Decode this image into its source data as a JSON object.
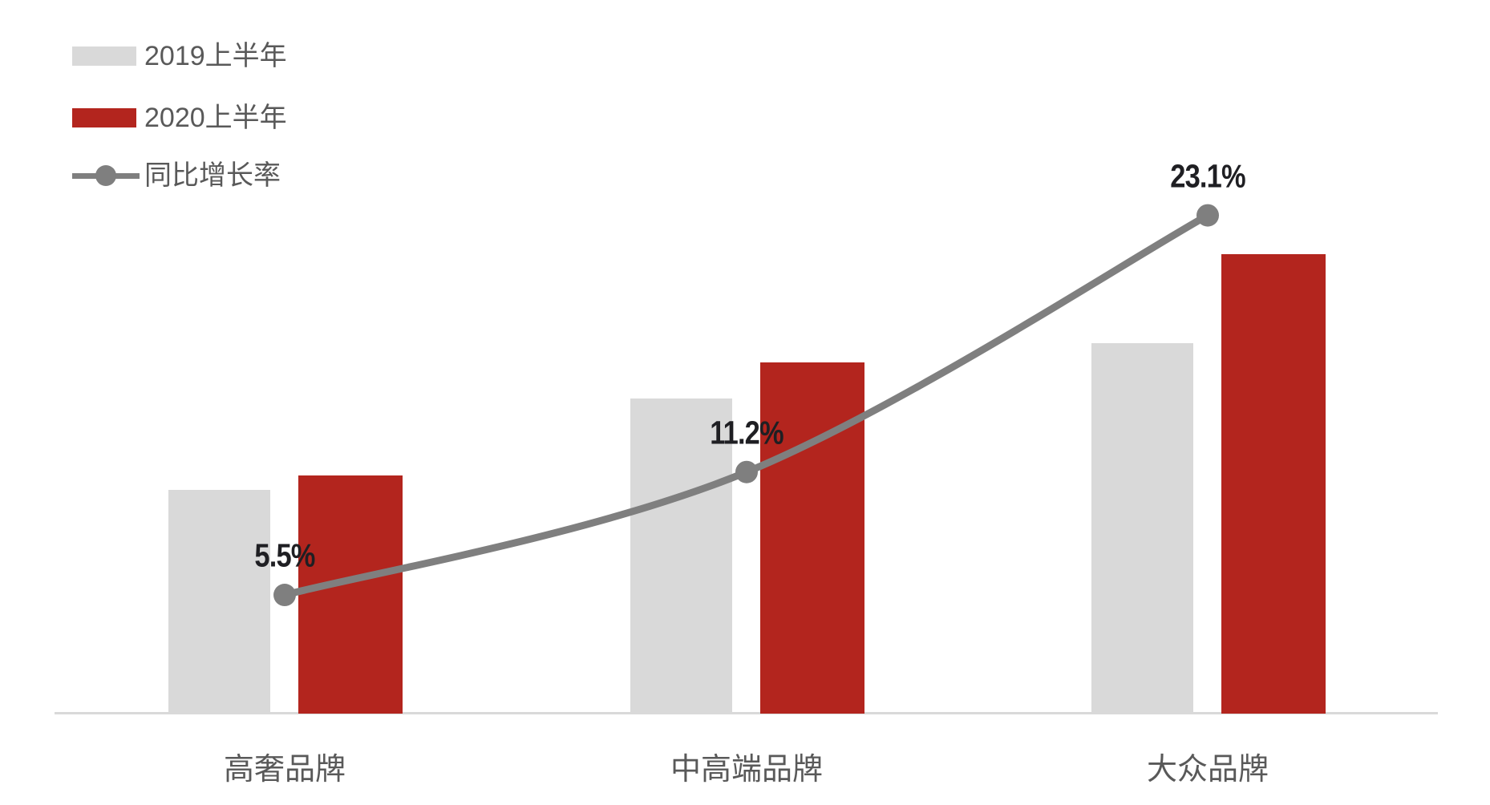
{
  "chart_data": {
    "type": "bar",
    "subtype": "grouped-bars-with-growth-line",
    "title": "",
    "xlabel": "",
    "ylabel": "",
    "categories": [
      "高奢品牌",
      "中高端品牌",
      "大众品牌"
    ],
    "series": [
      {
        "name": "2019上半年",
        "type": "bar",
        "color": "#D9D9D9",
        "values": [
          40.5,
          57,
          67
        ]
      },
      {
        "name": "2020上半年",
        "type": "bar",
        "color": "#B3251E",
        "values": [
          43,
          63.5,
          83
        ]
      },
      {
        "name": "同比增长率",
        "type": "line",
        "color": "#7F7F7F",
        "values": [
          5.5,
          11.2,
          23.1
        ],
        "point_labels": [
          "5.5%",
          "11.2%",
          "23.1%"
        ]
      }
    ],
    "value_axis": {
      "min": 0,
      "max": 100,
      "visible": false
    },
    "secondary_axis": {
      "min": 0,
      "max": 25.6,
      "unit": "%",
      "visible": false
    },
    "legend_position": "top-left",
    "grid": false
  },
  "colors": {
    "bar_2019": "#D9D9D9",
    "bar_2020": "#B3251E",
    "growth_line": "#7F7F7F",
    "data_label": "#1F1F23",
    "legend_text": "#595959",
    "category_text": "#595959",
    "axis_line": "#D9D9D9",
    "background": "#FFFFFF"
  }
}
